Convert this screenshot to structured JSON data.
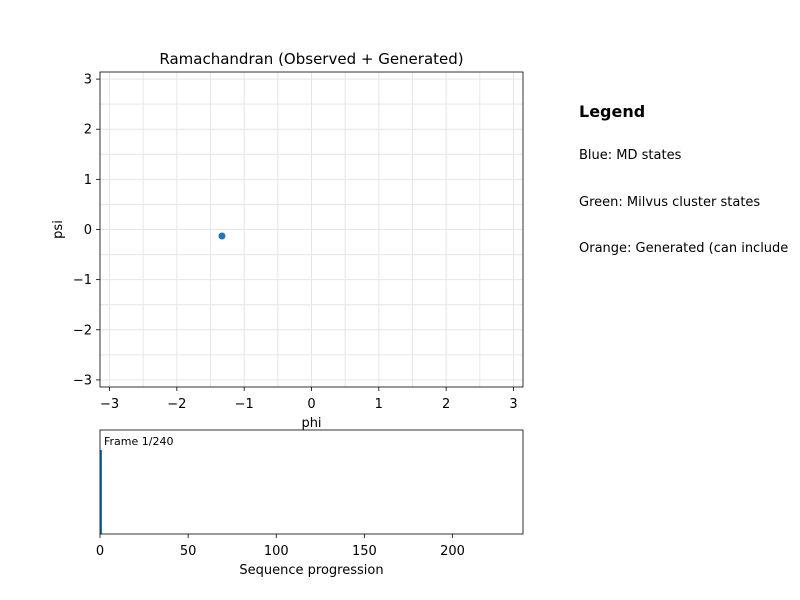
{
  "chart_data": [
    {
      "type": "scatter",
      "title": "Ramachandran (Observed + Generated)",
      "xlabel": "phi",
      "ylabel": "psi",
      "xlim": [
        -3.1416,
        3.1416
      ],
      "ylim": [
        -3.1416,
        3.1416
      ],
      "xticks": [
        -3,
        -2,
        -1,
        0,
        1,
        2,
        3
      ],
      "yticks": [
        -3,
        -2,
        -1,
        0,
        1,
        2,
        3
      ],
      "xtick_labels": [
        "−3",
        "−2",
        "−1",
        "0",
        "1",
        "2",
        "3"
      ],
      "ytick_labels": [
        "−3",
        "−2",
        "−1",
        "0",
        "1",
        "2",
        "3"
      ],
      "grid": true,
      "series": [
        {
          "color": "#1f77b4",
          "points": [
            {
              "x": -1.33,
              "y": -0.13
            }
          ]
        }
      ]
    },
    {
      "type": "bar",
      "xlabel": "Sequence progression",
      "xlim": [
        0,
        240
      ],
      "xticks": [
        0,
        50,
        100,
        150,
        200
      ],
      "annotation": "Frame 1/240",
      "progress": {
        "value": 1,
        "total": 240
      },
      "color": "#1f77b4"
    }
  ],
  "legend": {
    "title": "Legend",
    "lines": [
      "Blue: MD states",
      "Green: Milvus cluster states",
      "Orange: Generated (can include"
    ]
  }
}
